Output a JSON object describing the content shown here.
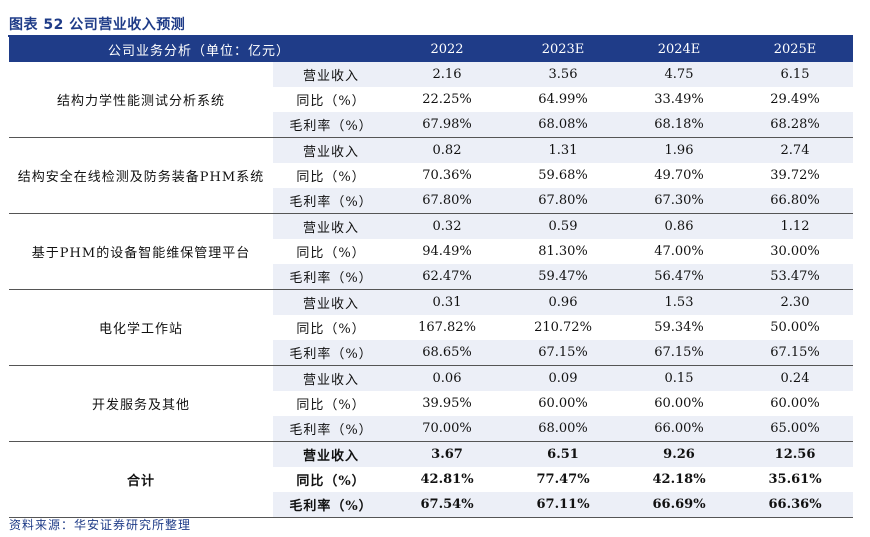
{
  "title": "图表 52 公司营业收入预测",
  "header": {
    "col0": "公司业务分析（单位：亿元）",
    "years": [
      "2022",
      "2023E",
      "2024E",
      "2025E"
    ]
  },
  "segments": [
    {
      "name": "结构力学性能测试分析系统",
      "rows": [
        {
          "metric": "营业收入",
          "values": [
            "2.16",
            "3.56",
            "4.75",
            "6.15"
          ]
        },
        {
          "metric": "同比（%）",
          "values": [
            "22.25%",
            "64.99%",
            "33.49%",
            "29.49%"
          ]
        },
        {
          "metric": "毛利率（%）",
          "values": [
            "67.98%",
            "68.08%",
            "68.18%",
            "68.28%"
          ]
        }
      ]
    },
    {
      "name": "结构安全在线检测及防务装备PHM系统",
      "rows": [
        {
          "metric": "营业收入",
          "values": [
            "0.82",
            "1.31",
            "1.96",
            "2.74"
          ]
        },
        {
          "metric": "同比（%）",
          "values": [
            "70.36%",
            "59.68%",
            "49.70%",
            "39.72%"
          ]
        },
        {
          "metric": "毛利率（%）",
          "values": [
            "67.80%",
            "67.80%",
            "67.30%",
            "66.80%"
          ]
        }
      ]
    },
    {
      "name": "基于PHM的设备智能维保管理平台",
      "rows": [
        {
          "metric": "营业收入",
          "values": [
            "0.32",
            "0.59",
            "0.86",
            "1.12"
          ]
        },
        {
          "metric": "同比（%）",
          "values": [
            "94.49%",
            "81.30%",
            "47.00%",
            "30.00%"
          ]
        },
        {
          "metric": "毛利率（%）",
          "values": [
            "62.47%",
            "59.47%",
            "56.47%",
            "53.47%"
          ]
        }
      ]
    },
    {
      "name": "电化学工作站",
      "rows": [
        {
          "metric": "营业收入",
          "values": [
            "0.31",
            "0.96",
            "1.53",
            "2.30"
          ]
        },
        {
          "metric": "同比（%）",
          "values": [
            "167.82%",
            "210.72%",
            "59.34%",
            "50.00%"
          ]
        },
        {
          "metric": "毛利率（%）",
          "values": [
            "68.65%",
            "67.15%",
            "67.15%",
            "67.15%"
          ]
        }
      ]
    },
    {
      "name": "开发服务及其他",
      "rows": [
        {
          "metric": "营业收入",
          "values": [
            "0.06",
            "0.09",
            "0.15",
            "0.24"
          ]
        },
        {
          "metric": "同比（%）",
          "values": [
            "39.95%",
            "60.00%",
            "60.00%",
            "60.00%"
          ]
        },
        {
          "metric": "毛利率（%）",
          "values": [
            "70.00%",
            "68.00%",
            "66.00%",
            "65.00%"
          ]
        }
      ]
    },
    {
      "name": "合计",
      "rows": [
        {
          "metric": "营业收入",
          "values": [
            "3.67",
            "6.51",
            "9.26",
            "12.56"
          ]
        },
        {
          "metric": "同比（%）",
          "values": [
            "42.81%",
            "77.47%",
            "42.18%",
            "35.61%"
          ]
        },
        {
          "metric": "毛利率（%）",
          "values": [
            "67.54%",
            "67.11%",
            "66.69%",
            "66.36%"
          ]
        }
      ]
    }
  ],
  "source": "资料来源：华安证券研究所整理"
}
